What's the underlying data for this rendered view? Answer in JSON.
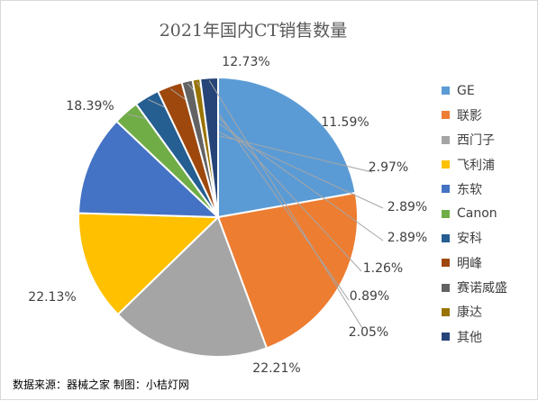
{
  "chart_data": {
    "type": "pie",
    "title": "2021年国内CT销售数量",
    "categories": [
      "GE",
      "联影",
      "西门子",
      "飞利浦",
      "东软",
      "Canon",
      "安科",
      "明峰",
      "赛诺威盛",
      "康达",
      "其他"
    ],
    "values": [
      22.21,
      22.13,
      18.39,
      12.73,
      11.59,
      2.97,
      2.89,
      2.89,
      1.26,
      0.89,
      2.05
    ],
    "value_labels": [
      "22.21%",
      "22.13%",
      "18.39%",
      "12.73%",
      "11.59%",
      "2.97%",
      "2.89%",
      "2.89%",
      "1.26%",
      "0.89%",
      "2.05%"
    ],
    "colors": [
      "#5b9bd5",
      "#ed7d31",
      "#a5a5a5",
      "#ffc000",
      "#4472c4",
      "#70ad47",
      "#255e91",
      "#9e480e",
      "#636363",
      "#997300",
      "#264478"
    ],
    "legend_position": "right",
    "unit": "%"
  },
  "footer": {
    "source": "数据来源：器械之家    制图：小桔灯网"
  }
}
